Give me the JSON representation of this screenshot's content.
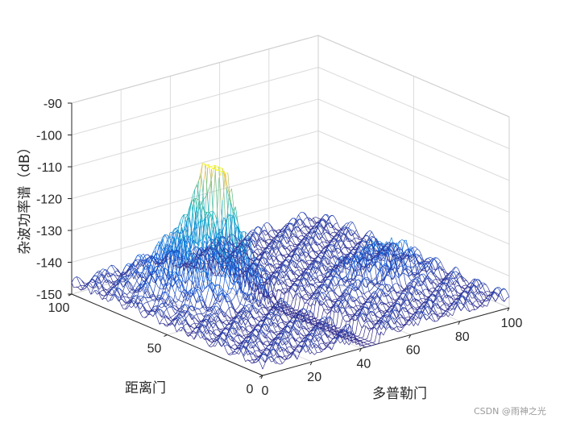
{
  "chart_data": {
    "type": "surface-mesh",
    "colormap": "parula",
    "grid": true,
    "box": "3d-half",
    "xlabel": "多普勒门",
    "ylabel": "距离门",
    "zlabel": "杂波功率谱（dB）",
    "xlim": [
      0,
      100
    ],
    "ylim": [
      0,
      100
    ],
    "zlim": [
      -150,
      -90
    ],
    "xticks": [
      "0",
      "20",
      "40",
      "60",
      "80",
      "100"
    ],
    "yticks": [
      "0",
      "50",
      "100"
    ],
    "zticks": [
      "-90",
      "-100",
      "-110",
      "-120",
      "-130",
      "-140",
      "-150"
    ],
    "peak": {
      "doppler_gate": 36,
      "range_gate": 72,
      "power_db": -111
    },
    "floor_db": -148
  },
  "watermark": "CSDN @雨神之光"
}
